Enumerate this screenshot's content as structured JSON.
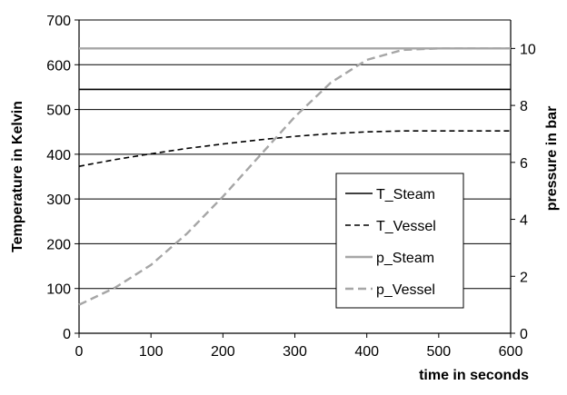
{
  "chart_data": {
    "type": "line",
    "xlabel": "time in seconds",
    "ylabel_left": "Temperature in Kelvin",
    "ylabel_right": "pressure in bar",
    "xlim": [
      0,
      600
    ],
    "ylim_left": [
      0,
      700
    ],
    "ylim_right": [
      0,
      11
    ],
    "x_ticks": [
      0,
      100,
      200,
      300,
      400,
      500,
      600
    ],
    "y_ticks_left": [
      0,
      100,
      200,
      300,
      400,
      500,
      600,
      700
    ],
    "y_ticks_right": [
      0,
      2,
      4,
      6,
      8,
      10
    ],
    "grid": "horizontal",
    "legend_position": "right-center",
    "colors": {
      "T_Steam": "#000000",
      "T_Vessel": "#000000",
      "p_Steam": "#a6a6a6",
      "p_Vessel": "#a6a6a6",
      "grid": "#000000"
    },
    "series": [
      {
        "name": "T_Steam",
        "axis": "left",
        "style": "solid",
        "x": [
          0,
          600
        ],
        "y": [
          545,
          545
        ]
      },
      {
        "name": "T_Vessel",
        "axis": "left",
        "style": "dashed",
        "x": [
          0,
          50,
          100,
          150,
          200,
          250,
          300,
          350,
          400,
          450,
          500,
          550,
          600
        ],
        "y": [
          373,
          388,
          401,
          413,
          423,
          432,
          440,
          446,
          450,
          452,
          452,
          452,
          452
        ]
      },
      {
        "name": "p_Steam",
        "axis": "right",
        "style": "solid",
        "x": [
          0,
          600
        ],
        "y": [
          10,
          10
        ]
      },
      {
        "name": "p_Vessel",
        "axis": "right",
        "style": "dashed",
        "x": [
          0,
          50,
          100,
          150,
          200,
          250,
          300,
          350,
          400,
          450,
          500,
          550,
          600
        ],
        "y": [
          1.0,
          1.6,
          2.4,
          3.5,
          4.8,
          6.2,
          7.6,
          8.8,
          9.6,
          9.95,
          10.0,
          10.0,
          10.0
        ]
      }
    ]
  }
}
